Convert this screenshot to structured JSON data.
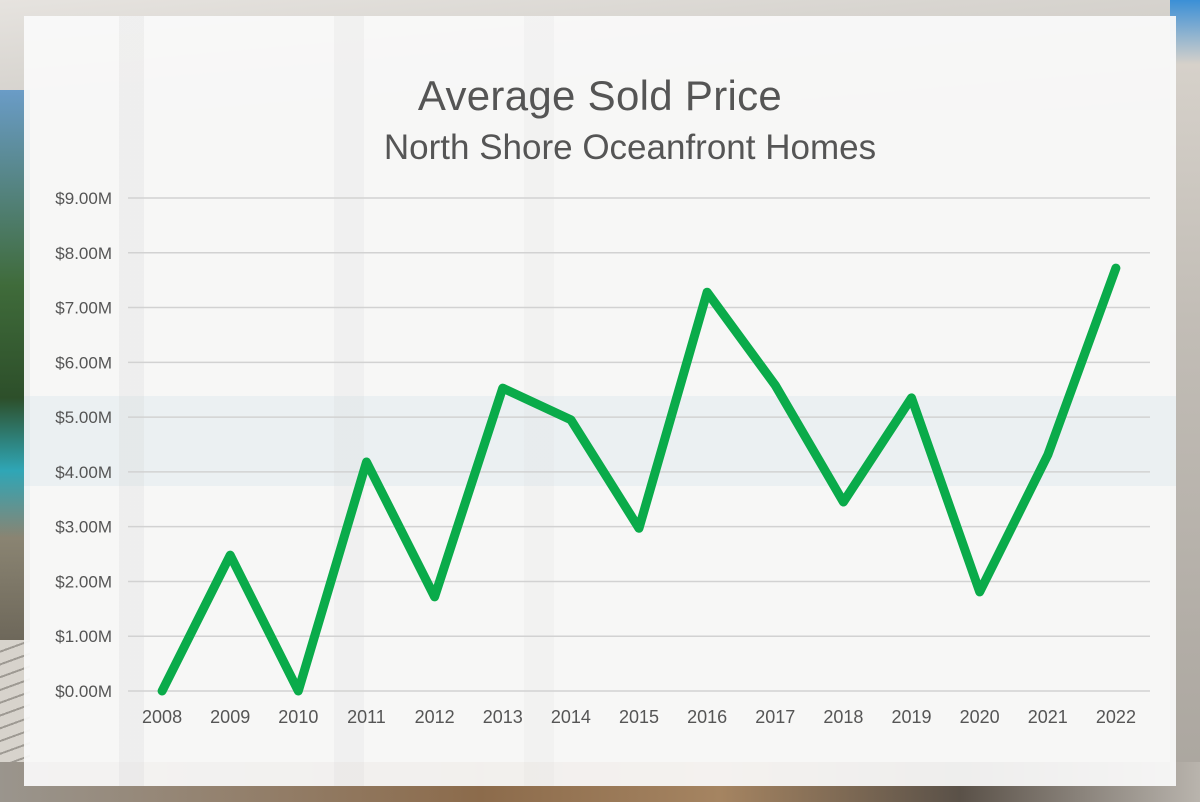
{
  "title": "Average Sold Price",
  "subtitle": "North Shore Oceanfront Homes",
  "colors": {
    "line": "#0aab4a",
    "grid": "#d2d2d2",
    "text": "#555555",
    "panel": "#fafafa"
  },
  "chart_data": {
    "type": "line",
    "title": "Average Sold Price",
    "subtitle": "North Shore Oceanfront Homes",
    "xlabel": "",
    "ylabel": "",
    "categories": [
      "2008",
      "2009",
      "2010",
      "2011",
      "2012",
      "2013",
      "2014",
      "2015",
      "2016",
      "2017",
      "2018",
      "2019",
      "2020",
      "2021",
      "2022"
    ],
    "series": [
      {
        "name": "Average Sold Price ($M)",
        "color": "#0aab4a",
        "values": [
          0.0,
          2.48,
          0.0,
          4.18,
          1.72,
          5.53,
          4.95,
          2.97,
          7.28,
          5.58,
          3.45,
          5.35,
          1.81,
          4.31,
          7.72
        ]
      }
    ],
    "ylim": [
      0,
      9
    ],
    "yticks": [
      0,
      1,
      2,
      3,
      4,
      5,
      6,
      7,
      8,
      9
    ],
    "ytick_labels": [
      "$0.00M",
      "$1.00M",
      "$2.00M",
      "$3.00M",
      "$4.00M",
      "$5.00M",
      "$6.00M",
      "$7.00M",
      "$8.00M",
      "$9.00M"
    ],
    "grid": true,
    "legend": "none"
  }
}
